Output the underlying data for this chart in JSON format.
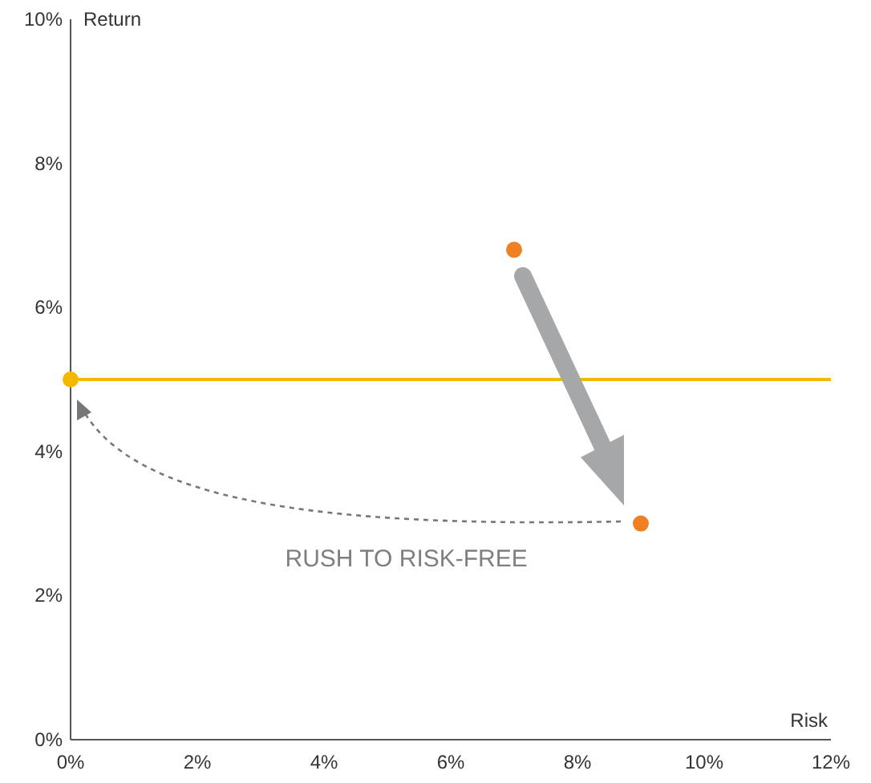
{
  "chart_data": {
    "type": "scatter",
    "xlabel": "Risk",
    "ylabel": "Return",
    "xlim": [
      0,
      12
    ],
    "xticks": [
      {
        "value": 0,
        "label": "0%"
      },
      {
        "value": 2,
        "label": "2%"
      },
      {
        "value": 4,
        "label": "4%"
      },
      {
        "value": 6,
        "label": "6%"
      },
      {
        "value": 8,
        "label": "8%"
      },
      {
        "value": 10,
        "label": "10%"
      },
      {
        "value": 12,
        "label": "12%"
      }
    ],
    "ylim": [
      0,
      10
    ],
    "yticks": [
      {
        "value": 0,
        "label": "0%"
      },
      {
        "value": 2,
        "label": "2%"
      },
      {
        "value": 4,
        "label": "4%"
      },
      {
        "value": 6,
        "label": "6%"
      },
      {
        "value": 8,
        "label": "8%"
      },
      {
        "value": 10,
        "label": "10%"
      }
    ],
    "series": [
      {
        "color": "#f5b800",
        "x": [
          0
        ],
        "values": [
          5
        ]
      },
      {
        "color": "#f07f22",
        "x": [
          7,
          9
        ],
        "values": [
          6.8,
          3
        ]
      }
    ],
    "ref_lines": [
      {
        "axis": "y",
        "value": 5,
        "color": "#f5b800",
        "line_style": "solid"
      }
    ],
    "annotations": [
      "RUSH TO RISK-FREE"
    ],
    "grid": false,
    "marker": "circle"
  }
}
